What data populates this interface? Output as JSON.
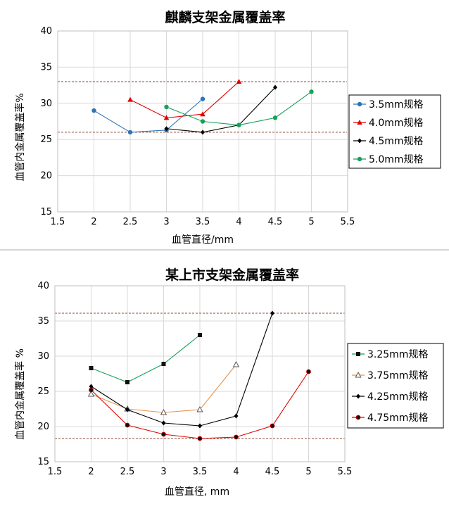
{
  "chart_data": [
    {
      "type": "line",
      "title": "麒麟支架金属覆盖率",
      "xlabel": "血管直径/mm",
      "ylabel": "血管内金属覆盖率%",
      "xlim": [
        1.5,
        5.5
      ],
      "ylim": [
        15,
        40
      ],
      "xticks": [
        1.5,
        2,
        2.5,
        3,
        3.5,
        4,
        4.5,
        5,
        5.5
      ],
      "xtick_labels": [
        "1.5",
        "2",
        "2.5",
        "3",
        "3.5",
        "4",
        "4.5",
        "5",
        "5.5"
      ],
      "yticks": [
        15,
        20,
        25,
        30,
        35,
        40
      ],
      "ytick_labels": [
        "15",
        "20",
        "25",
        "30",
        "35",
        "40"
      ],
      "grid": true,
      "legend_position": "right",
      "reference_lines": [
        33,
        26
      ],
      "series": [
        {
          "name": "3.5mm规格",
          "color": "#2e75b6",
          "marker": "circle",
          "x": [
            2,
            2.5,
            3,
            3.5
          ],
          "y": [
            29,
            26,
            26.3,
            30.6
          ]
        },
        {
          "name": "4.0mm规格",
          "color": "#e00000",
          "marker": "triangle",
          "x": [
            2.5,
            3,
            3.5,
            4
          ],
          "y": [
            30.5,
            28,
            28.5,
            33
          ]
        },
        {
          "name": "4.5mm规格",
          "color": "#000000",
          "marker": "diamond",
          "x": [
            3,
            3.5,
            4,
            4.5
          ],
          "y": [
            26.5,
            26,
            27,
            32.2
          ]
        },
        {
          "name": "5.0mm规格",
          "color": "#19a05a",
          "marker": "circle",
          "x": [
            3,
            3.5,
            4,
            4.5,
            5
          ],
          "y": [
            29.5,
            27.5,
            27,
            28,
            31.6
          ]
        }
      ]
    },
    {
      "type": "line",
      "title": "某上市支架金属覆盖率",
      "xlabel": "血管直径, mm",
      "ylabel": "血管内金属覆盖率 %",
      "xlim": [
        1.5,
        5.5
      ],
      "ylim": [
        15,
        40
      ],
      "xticks": [
        1.5,
        2,
        2.5,
        3,
        3.5,
        4,
        4.5,
        5,
        5.5
      ],
      "xtick_labels": [
        "1.5",
        "2",
        "2.5",
        "3",
        "3.5",
        "4",
        "4.5",
        "5",
        "5.5"
      ],
      "yticks": [
        15,
        20,
        25,
        30,
        35,
        40
      ],
      "ytick_labels": [
        "15",
        "20",
        "25",
        "30",
        "35",
        "40"
      ],
      "grid": true,
      "legend_position": "right",
      "reference_lines": [
        36.1,
        18.3
      ],
      "series": [
        {
          "name": "3.25mm规格",
          "color": "#19a05a",
          "marker": "square",
          "x": [
            2,
            2.5,
            3,
            3.5
          ],
          "y": [
            28.3,
            26.3,
            28.9,
            33
          ]
        },
        {
          "name": "3.75mm规格",
          "color": "#e8944a",
          "marker": "triangle-open",
          "x": [
            2,
            2.5,
            3,
            3.5,
            4
          ],
          "y": [
            24.6,
            22.5,
            22,
            22.4,
            28.8
          ]
        },
        {
          "name": "4.25mm规格",
          "color": "#000000",
          "marker": "diamond",
          "x": [
            2,
            2.5,
            3,
            3.5,
            4,
            4.5
          ],
          "y": [
            25.7,
            22.4,
            20.5,
            20.1,
            21.5,
            36.1
          ]
        },
        {
          "name": "4.75mm规格",
          "color": "#e00000",
          "marker": "circle-dark",
          "x": [
            2,
            2.5,
            3,
            3.5,
            4,
            4.5,
            5
          ],
          "y": [
            25.2,
            20.2,
            18.9,
            18.3,
            18.5,
            20.1,
            27.8
          ]
        }
      ]
    }
  ]
}
